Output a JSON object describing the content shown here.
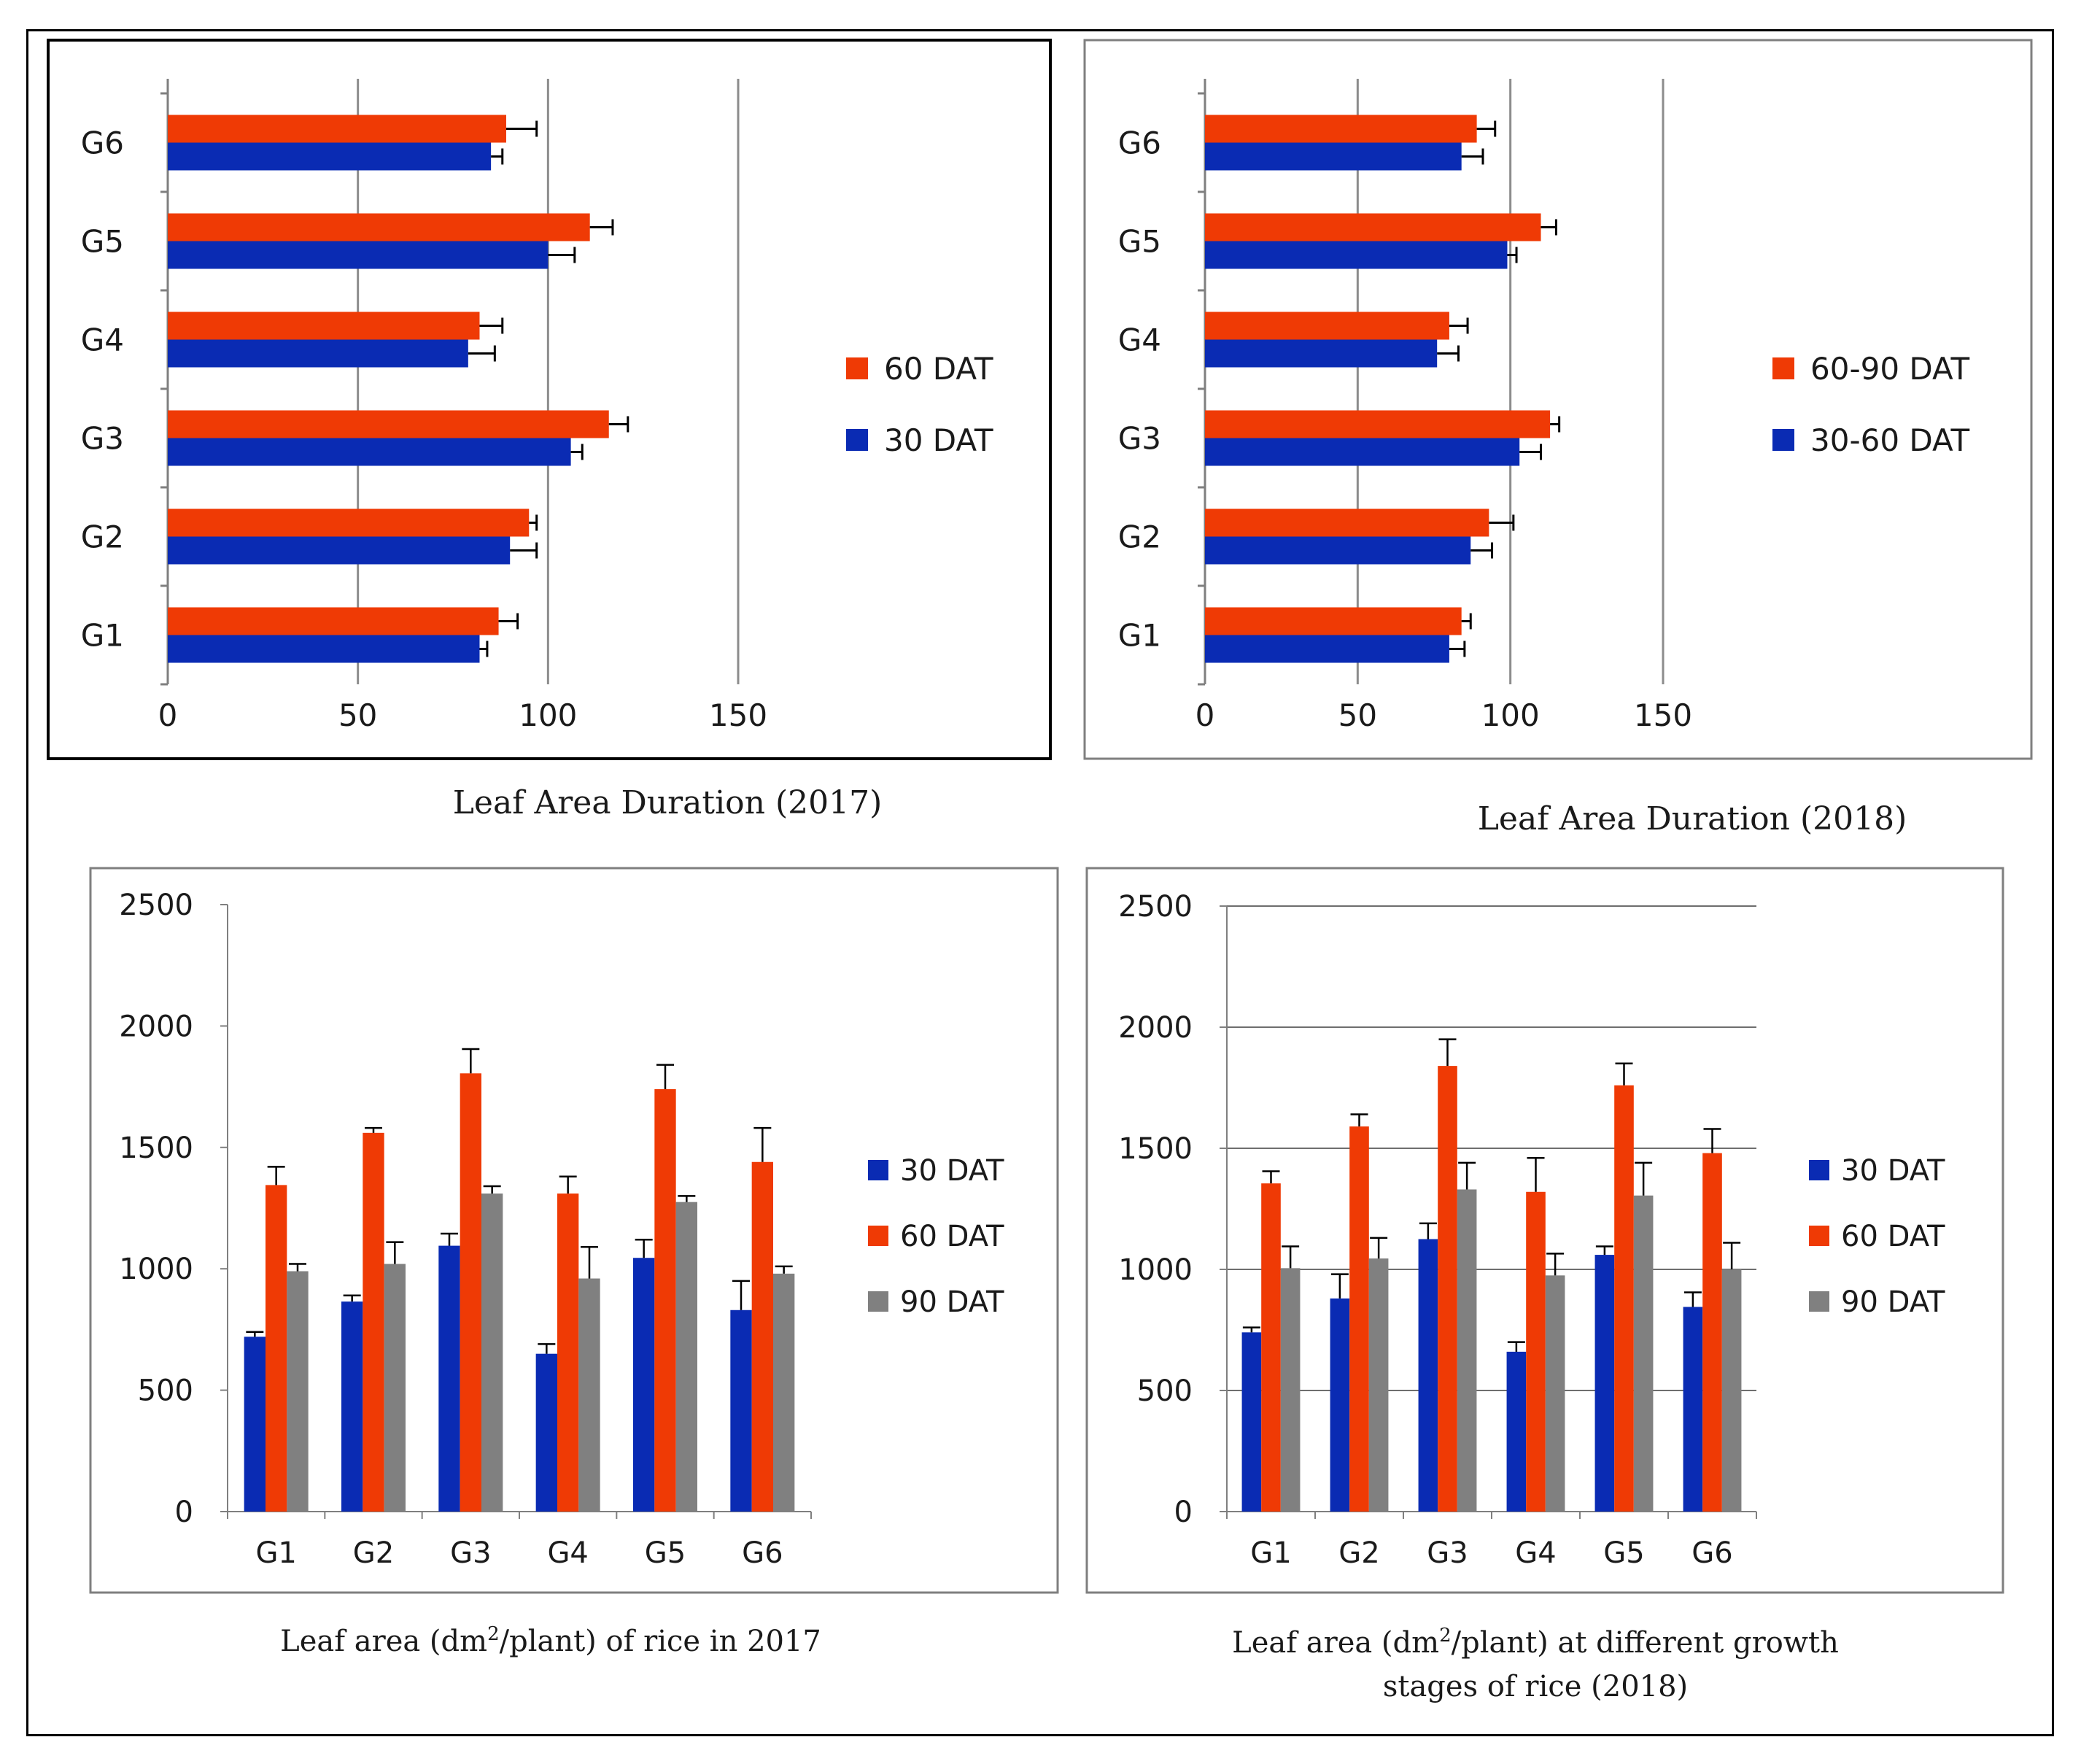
{
  "colors": {
    "blue": "#0A2BB3",
    "orange": "#EF3A05",
    "gray": "#808080",
    "grid": "#8C8C8C",
    "axis": "#7F7F7F",
    "text": "#1A1A1A"
  },
  "chart_data": [
    {
      "id": "lad2017",
      "type": "bar",
      "orientation": "horizontal",
      "caption": "Leaf Area Duration (2017)",
      "categories": [
        "G1",
        "G2",
        "G3",
        "G4",
        "G5",
        "G6"
      ],
      "xlim": [
        0,
        150
      ],
      "xticks": [
        "0",
        "50",
        "100",
        "150"
      ],
      "grid": true,
      "legend_position": "right",
      "legend": [
        "60 DAT",
        "30 DAT"
      ],
      "series": [
        {
          "name": "60 DAT",
          "color": "orange",
          "values": [
            87,
            95,
            116,
            82,
            111,
            89
          ],
          "errors": [
            5,
            2,
            5,
            6,
            6,
            8
          ]
        },
        {
          "name": "30 DAT",
          "color": "blue",
          "values": [
            82,
            90,
            106,
            79,
            100,
            85
          ],
          "errors": [
            2,
            7,
            3,
            7,
            7,
            3
          ]
        }
      ]
    },
    {
      "id": "lad2018",
      "type": "bar",
      "orientation": "horizontal",
      "caption": "Leaf Area Duration (2018)",
      "categories": [
        "G1",
        "G2",
        "G3",
        "G4",
        "G5",
        "G6"
      ],
      "xlim": [
        0,
        150
      ],
      "xticks": [
        "0",
        "50",
        "100",
        "150"
      ],
      "grid": true,
      "legend_position": "right",
      "legend": [
        "60-90 DAT",
        "30-60 DAT"
      ],
      "series": [
        {
          "name": "60-90 DAT",
          "color": "orange",
          "values": [
            84,
            93,
            113,
            80,
            110,
            89
          ],
          "errors": [
            3,
            8,
            3,
            6,
            5,
            6
          ]
        },
        {
          "name": "30-60 DAT",
          "color": "blue",
          "values": [
            80,
            87,
            103,
            76,
            99,
            84
          ],
          "errors": [
            5,
            7,
            7,
            7,
            3,
            7
          ]
        }
      ]
    },
    {
      "id": "la2017",
      "type": "bar",
      "orientation": "vertical",
      "caption_parts": [
        "Leaf area (dm",
        "2",
        "/plant) of rice in 2017"
      ],
      "categories": [
        "G1",
        "G2",
        "G3",
        "G4",
        "G5",
        "G6"
      ],
      "ylim": [
        0,
        2500
      ],
      "yticks": [
        "0",
        "500",
        "1000",
        "1500",
        "2000",
        "2500"
      ],
      "grid": false,
      "legend_position": "right",
      "legend": [
        "30 DAT",
        "60 DAT",
        "90 DAT"
      ],
      "series": [
        {
          "name": "30 DAT",
          "color": "blue",
          "values": [
            720,
            865,
            1095,
            650,
            1045,
            830
          ],
          "errors": [
            20,
            25,
            50,
            40,
            75,
            120
          ]
        },
        {
          "name": "60 DAT",
          "color": "orange",
          "values": [
            1345,
            1560,
            1805,
            1310,
            1740,
            1440
          ],
          "errors": [
            75,
            20,
            100,
            70,
            100,
            140
          ]
        },
        {
          "name": "90 DAT",
          "color": "gray",
          "values": [
            990,
            1020,
            1310,
            960,
            1275,
            980
          ],
          "errors": [
            30,
            90,
            30,
            130,
            25,
            30
          ]
        }
      ]
    },
    {
      "id": "la2018",
      "type": "bar",
      "orientation": "vertical",
      "caption_parts": [
        "Leaf area (dm",
        "2",
        "/plant) at different growth",
        "stages of rice (2018)"
      ],
      "categories": [
        "G1",
        "G2",
        "G3",
        "G4",
        "G5",
        "G6"
      ],
      "ylim": [
        0,
        2500
      ],
      "yticks": [
        "0",
        "500",
        "1000",
        "1500",
        "2000",
        "2500"
      ],
      "grid": true,
      "legend_position": "right",
      "legend": [
        "30 DAT",
        "60 DAT",
        "90 DAT"
      ],
      "series": [
        {
          "name": "30 DAT",
          "color": "blue",
          "values": [
            740,
            880,
            1125,
            660,
            1060,
            845
          ],
          "errors": [
            20,
            100,
            65,
            40,
            35,
            60
          ]
        },
        {
          "name": "60 DAT",
          "color": "orange",
          "values": [
            1355,
            1590,
            1840,
            1320,
            1760,
            1480
          ],
          "errors": [
            50,
            50,
            110,
            140,
            90,
            100
          ]
        },
        {
          "name": "90 DAT",
          "color": "gray",
          "values": [
            1005,
            1045,
            1330,
            975,
            1305,
            1000
          ],
          "errors": [
            90,
            85,
            110,
            90,
            135,
            110
          ]
        }
      ]
    }
  ]
}
